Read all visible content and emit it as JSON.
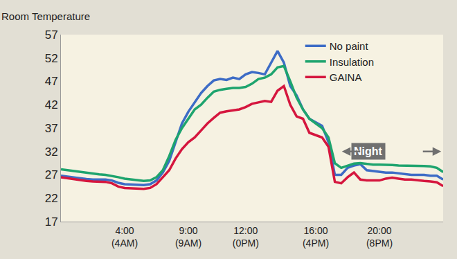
{
  "chart_data": {
    "type": "line",
    "ylabel": "Room Temperature",
    "categories": [
      null,
      null,
      null,
      null,
      null,
      null,
      null,
      null,
      null,
      null,
      "4:00\n(4AM)",
      null,
      null,
      null,
      null,
      null,
      null,
      null,
      null,
      null,
      "9:00\n(9AM)",
      null,
      null,
      null,
      null,
      null,
      null,
      null,
      null,
      "12:00\n(0PM)",
      null,
      null,
      null,
      null,
      null,
      null,
      null,
      null,
      null,
      null,
      "16:00\n(4PM)",
      null,
      null,
      null,
      null,
      null,
      null,
      null,
      null,
      null,
      "20:00\n(8PM)",
      null,
      null,
      null,
      null,
      null,
      null,
      null,
      null,
      null,
      null
    ],
    "series": [
      {
        "name": "No paint",
        "color": "#3d6cc6",
        "values": [
          26.8,
          26.6,
          26.4,
          26.2,
          26.1,
          26,
          26,
          26,
          25.8,
          25.3,
          25,
          24.9,
          24.8,
          24.8,
          25,
          25.8,
          27.5,
          30,
          34,
          38,
          40.5,
          42.5,
          44.5,
          46,
          47.2,
          47.5,
          47.3,
          47.8,
          47.5,
          48.5,
          49,
          48.8,
          48.5,
          51,
          53.5,
          51,
          46,
          44,
          41,
          39,
          38.2,
          37.5,
          34,
          27,
          27,
          28.5,
          29,
          29.3,
          28,
          27.8,
          27.6,
          27.5,
          27.5,
          27.3,
          27.2,
          27,
          27,
          27,
          26.8,
          26.8,
          26
        ]
      },
      {
        "name": "Insulation",
        "color": "#1ea46e",
        "values": [
          28.2,
          28,
          27.8,
          27.6,
          27.4,
          27.2,
          27.1,
          27,
          26.8,
          26.5,
          26.2,
          26,
          25.8,
          25.7,
          25.8,
          26.5,
          28,
          31,
          34.5,
          37,
          39,
          41,
          42,
          43.5,
          44.8,
          45.2,
          45.4,
          45.6,
          45.6,
          45.8,
          46.5,
          47.5,
          47.8,
          48.5,
          50,
          50.3,
          47,
          43.5,
          41,
          39,
          38,
          37,
          35,
          29.5,
          28.5,
          29,
          29.4,
          29.5,
          29.3,
          29.2,
          29.2,
          29.2,
          29.1,
          29,
          29,
          28.9,
          28.9,
          28.9,
          28.8,
          28.5,
          27.6
        ]
      },
      {
        "name": "GAINA",
        "color": "#d5163e",
        "values": [
          26.5,
          26.3,
          26,
          25.8,
          25.7,
          25.6,
          25.6,
          25.5,
          25.2,
          24.5,
          24.2,
          24.1,
          24,
          24,
          24.2,
          25,
          26.5,
          28,
          30.5,
          32.5,
          34,
          35,
          36.5,
          38,
          39.2,
          40.3,
          40.6,
          40.8,
          41,
          41.5,
          42.2,
          42.5,
          42.8,
          42.6,
          45,
          46,
          42,
          39.5,
          39,
          36,
          35.5,
          35,
          33,
          25.5,
          25.2,
          26.5,
          27.5,
          26,
          25.8,
          25.8,
          25.8,
          26.2,
          26.4,
          26.2,
          26,
          26,
          25.8,
          25.7,
          25.6,
          25.4,
          24.6
        ]
      }
    ],
    "ylim": [
      17,
      57
    ],
    "yticks": [
      17,
      22,
      27,
      32,
      37,
      42,
      47,
      52,
      57
    ],
    "grid": false,
    "legend": "upper right",
    "annotations": [
      {
        "text": "Night"
      }
    ]
  }
}
